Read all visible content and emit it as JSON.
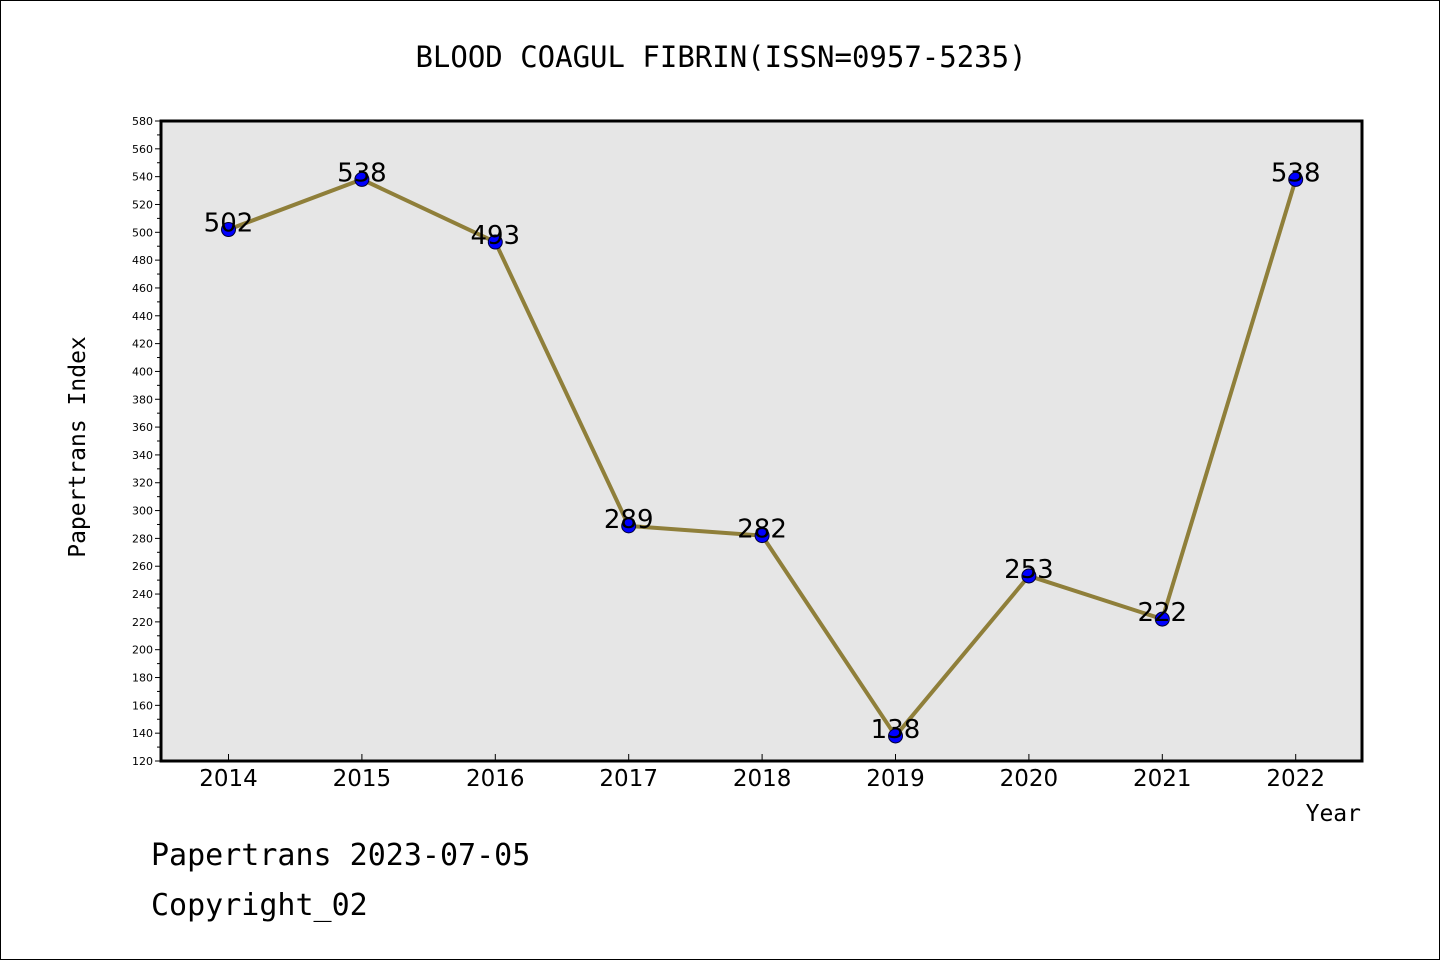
{
  "chart_data": {
    "type": "line",
    "title": "BLOOD COAGUL FIBRIN(ISSN=0957-5235)",
    "xlabel": "Year",
    "ylabel": "Papertrans Index",
    "categories": [
      "2014",
      "2015",
      "2016",
      "2017",
      "2018",
      "2019",
      "2020",
      "2021",
      "2022"
    ],
    "series": [
      {
        "values": [
          502,
          538,
          493,
          289,
          282,
          138,
          253,
          222,
          538
        ]
      }
    ],
    "data_labels": [
      "502",
      "538",
      "493",
      "289",
      "282",
      "138",
      "253",
      "222",
      "538"
    ],
    "ylim": [
      120,
      580
    ],
    "yticks": [
      "120",
      "140",
      "160",
      "180",
      "200",
      "220",
      "240",
      "260",
      "280",
      "300",
      "320",
      "340",
      "360",
      "380",
      "400",
      "420",
      "440",
      "460",
      "480",
      "500",
      "520",
      "540",
      "560",
      "580"
    ],
    "grid": false,
    "legend": "none",
    "colors": {
      "line": "#8f7f3a",
      "marker": "#0000ff",
      "plot_background": "#e6e6e6",
      "axes": "#000000"
    }
  },
  "footer": {
    "date_line": "Papertrans 2023-07-05",
    "copyright": "Copyright_02"
  }
}
